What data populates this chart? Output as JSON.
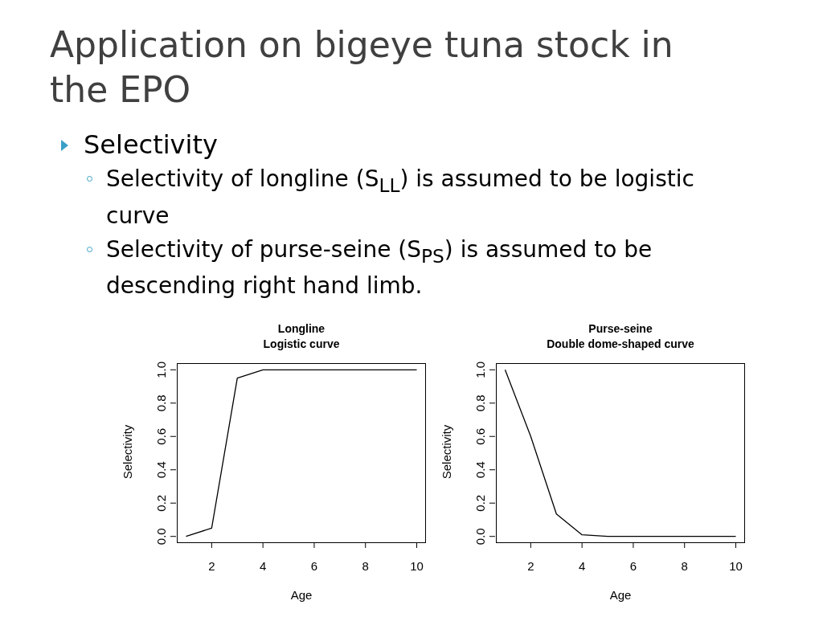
{
  "chart_data": [
    {
      "type": "other",
      "title": "Application on bigeye tuna stock in the EPO",
      "annotations": [
        "Selectivity",
        "Selectivity of longline (S$_{LL}$) is assumed to be logistic curve",
        "Selectivity of purse-seine (S$_{PS}$) is assumed to be descending right hand limb."
      ]
    },
    {
      "type": "line",
      "title": "Longline",
      "subtitle": "Logistic curve",
      "xlabel": "Age",
      "ylabel": "Selectivity",
      "x": [
        1,
        2,
        3,
        4,
        5,
        6,
        7,
        8,
        9,
        10
      ],
      "series": [
        {
          "color": "#000000",
          "values": [
            0,
            0.05,
            0.95,
            1,
            1,
            1,
            1,
            1,
            1,
            1
          ]
        }
      ],
      "xlim": [
        0.64,
        10.36
      ],
      "xticks": [
        2,
        4,
        6,
        8,
        10
      ],
      "ylim": [
        -0.04,
        1.04
      ],
      "yticks": [
        {
          "value": 0,
          "label": "0.0"
        },
        {
          "value": 0.2,
          "label": "0.2"
        },
        {
          "value": 0.4,
          "label": "0.4"
        },
        {
          "value": 0.6,
          "label": "0.6"
        },
        {
          "value": 0.8,
          "label": "0.8"
        },
        {
          "value": 1,
          "label": "1.0"
        }
      ],
      "grid": false,
      "marker": "none",
      "line_style": "solid"
    },
    {
      "type": "line",
      "title": "Purse-seine",
      "subtitle": "Double dome-shaped curve",
      "xlabel": "Age",
      "ylabel": "Selectivity",
      "x": [
        1,
        2,
        3,
        4,
        5,
        6,
        7,
        8,
        9,
        10
      ],
      "series": [
        {
          "color": "#000000",
          "values": [
            1,
            0.6,
            0.135,
            0.01,
            0,
            0,
            0,
            0,
            0,
            0
          ]
        }
      ],
      "xlim": [
        0.64,
        10.36
      ],
      "xticks": [
        2,
        4,
        6,
        8,
        10
      ],
      "ylim": [
        -0.04,
        1.04
      ],
      "yticks": [
        {
          "value": 0,
          "label": "0.0"
        },
        {
          "value": 0.2,
          "label": "0.2"
        },
        {
          "value": 0.4,
          "label": "0.4"
        },
        {
          "value": 0.6,
          "label": "0.6"
        },
        {
          "value": 0.8,
          "label": "0.8"
        },
        {
          "value": 1,
          "label": "1.0"
        }
      ],
      "grid": false,
      "marker": "none",
      "line_style": "solid"
    }
  ]
}
